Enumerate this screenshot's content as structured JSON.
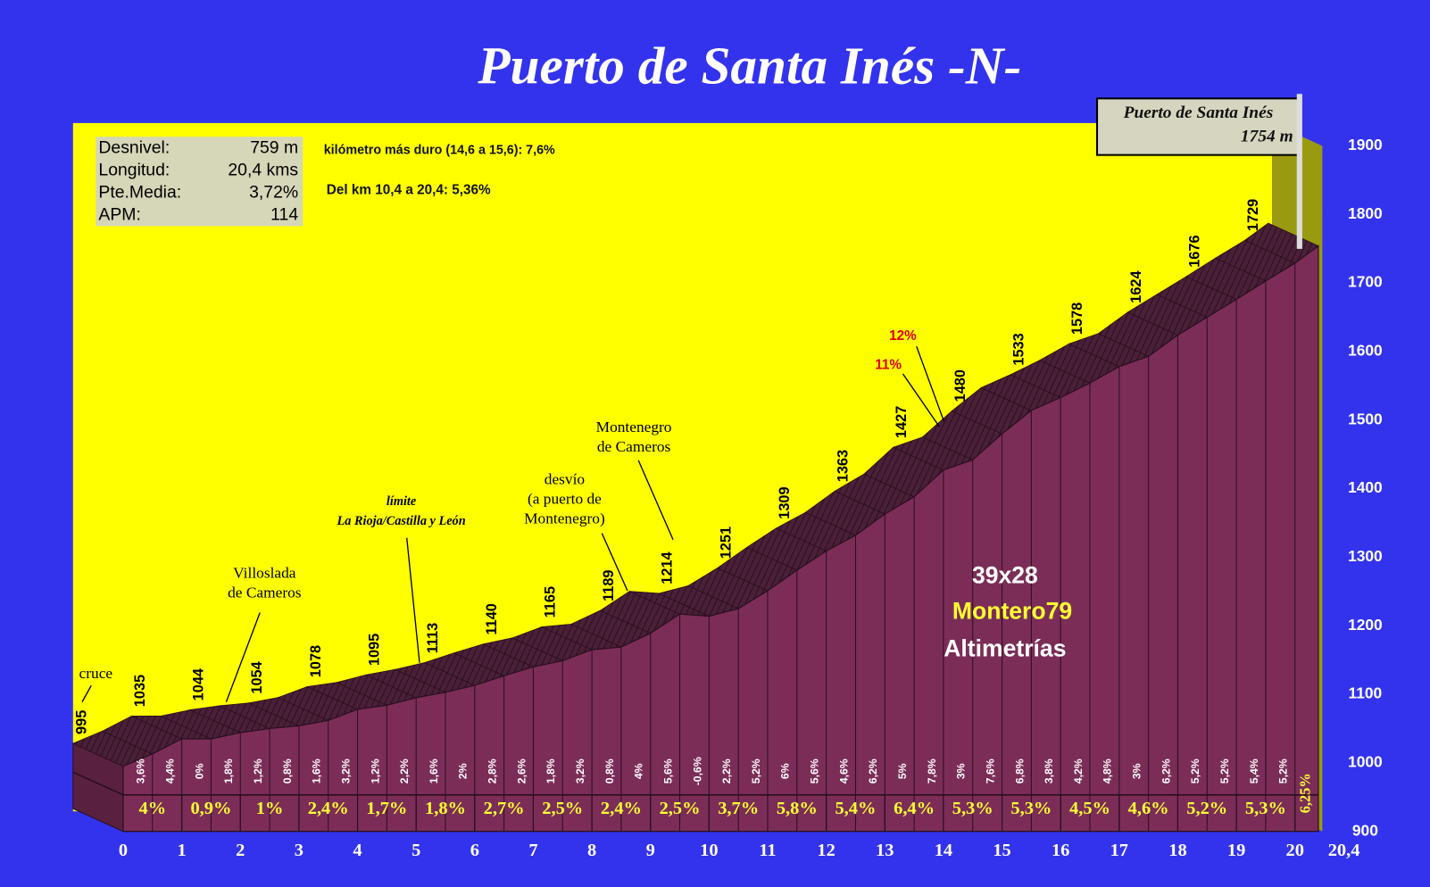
{
  "chart_data": {
    "type": "profile",
    "title": "Puerto de Santa Inés -N-",
    "x": [
      0,
      1,
      2,
      3,
      4,
      5,
      6,
      7,
      8,
      9,
      10,
      11,
      12,
      13,
      14,
      15,
      16,
      17,
      18,
      19,
      20,
      20.4
    ],
    "values": [
      995,
      1035,
      1044,
      1054,
      1078,
      1095,
      1113,
      1140,
      1165,
      1189,
      1214,
      1251,
      1309,
      1363,
      1427,
      1480,
      1533,
      1578,
      1624,
      1676,
      1729,
      1754
    ],
    "xticks": [
      0,
      1,
      2,
      3,
      4,
      5,
      6,
      7,
      8,
      9,
      10,
      11,
      12,
      13,
      14,
      15,
      16,
      17,
      18,
      19,
      20,
      {
        "value": 20.4,
        "label": "20,4"
      }
    ],
    "ylim": [
      900,
      1900
    ],
    "yticks": [
      900,
      1000,
      1100,
      1200,
      1300,
      1400,
      1500,
      1600,
      1700,
      1800,
      1900
    ],
    "half_km_grades": {
      "values": [
        3.6,
        4.4,
        0,
        1.8,
        1.2,
        0.8,
        1.6,
        3.2,
        1.2,
        2.2,
        1.6,
        2,
        2.8,
        2.6,
        1.8,
        3.2,
        0.8,
        4,
        5.6,
        -0.6,
        2.2,
        5.2,
        6,
        5.6,
        4.6,
        6.2,
        5,
        7.8,
        3,
        7.6,
        6.8,
        3.8,
        4.2,
        4.8,
        3,
        6.2,
        5.2,
        5.2,
        5.4,
        5.2
      ],
      "value_labels": [
        "3,6%",
        "4,4%",
        "0%",
        "1,8%",
        "1,2%",
        "0,8%",
        "1,6%",
        "3,2%",
        "1,2%",
        "2,2%",
        "1,6%",
        "2%",
        "2,8%",
        "2,6%",
        "1,8%",
        "3,2%",
        "0,8%",
        "4%",
        "5,6%",
        "-0,6%",
        "2,2%",
        "5,2%",
        "6%",
        "5,6%",
        "4,6%",
        "6,2%",
        "5%",
        "7,8%",
        "3%",
        "7,6%",
        "6,8%",
        "3,8%",
        "4,2%",
        "4,8%",
        "3%",
        "6,2%",
        "5,2%",
        "5,2%",
        "5,4%",
        "5,2%"
      ]
    },
    "km_grades": {
      "values": [
        4,
        0.9,
        1,
        2.4,
        1.7,
        1.8,
        2.7,
        2.5,
        2.4,
        2.5,
        3.7,
        5.8,
        5.4,
        6.4,
        5.3,
        5.3,
        4.5,
        4.6,
        5.2,
        5.3,
        6.25
      ],
      "value_labels": [
        "4%",
        "0,9%",
        "1%",
        "2,4%",
        "1,7%",
        "1,8%",
        "2,7%",
        "2,5%",
        "2,4%",
        "2,5%",
        "3,7%",
        "5,8%",
        "5,4%",
        "6,4%",
        "5,3%",
        "5,3%",
        "4,5%",
        "4,6%",
        "5,2%",
        "5,3%",
        "6,25%"
      ]
    },
    "summit": {
      "name": "Puerto de Santa Inés",
      "elevation_label": "1754 m"
    },
    "stats": [
      {
        "label": "Desnivel:",
        "value": "759 m"
      },
      {
        "label": "Longitud:",
        "value": "20,4 kms"
      },
      {
        "label": "Pte.Media:",
        "value": "3,72%"
      },
      {
        "label": "APM:",
        "value": "114"
      }
    ],
    "notes": [
      "kilómetro más duro (14,6 a 15,6):  7,6%",
      "Del km 10,4 a 20,4:  5,36%"
    ],
    "annotations": [
      {
        "lines": [
          "cruce"
        ]
      },
      {
        "lines": [
          "Villoslada",
          "de Cameros"
        ]
      },
      {
        "lines": [
          "límite",
          "La Rioja/Castilla y León"
        ]
      },
      {
        "lines": [
          "desvío",
          "(a puerto de",
          "Montenegro)"
        ]
      },
      {
        "lines": [
          "Montenegro",
          "de Cameros"
        ]
      },
      {
        "lines": [
          "12%"
        ]
      },
      {
        "lines": [
          "11%"
        ]
      }
    ],
    "watermark": [
      "39x28",
      "Montero79",
      "Altimetrías"
    ]
  }
}
